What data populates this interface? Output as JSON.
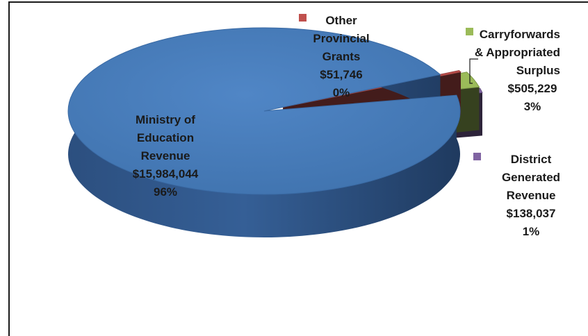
{
  "chart_data": {
    "type": "pie",
    "style": "3d-exploded",
    "legend_placement": "none",
    "slices": [
      {
        "name_lines": [
          "Ministry of",
          "Education",
          "Revenue"
        ],
        "amount": "$15,984,044",
        "pct_label": "96%",
        "value": 15984044,
        "color": "#4a7ebb"
      },
      {
        "name_lines": [
          "Other",
          "Provincial",
          "Grants"
        ],
        "amount": "$51,746",
        "pct_label": "0%",
        "value": 51746,
        "color": "#c0504d"
      },
      {
        "name_lines": [
          "Carryforwards",
          "& Appropriated",
          "Surplus"
        ],
        "amount": "$505,229",
        "pct_label": "3%",
        "value": 505229,
        "color": "#9bbb59"
      },
      {
        "name_lines": [
          "District",
          "Generated",
          "Revenue"
        ],
        "amount": "$138,037",
        "pct_label": "1%",
        "value": 138037,
        "color": "#8064a2"
      }
    ]
  }
}
